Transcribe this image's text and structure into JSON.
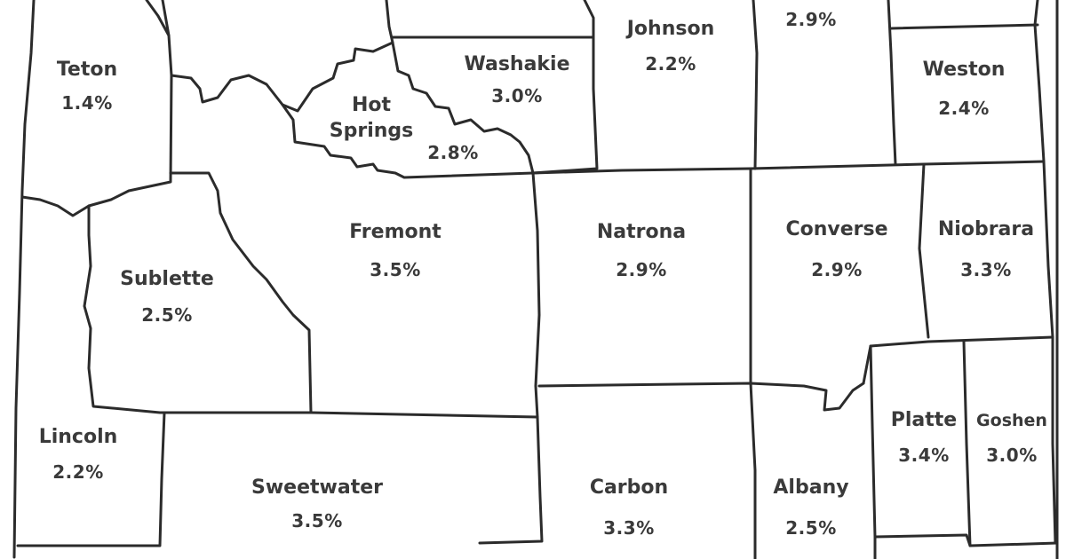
{
  "map": {
    "counties": [
      {
        "id": "teton",
        "name": "Teton",
        "value": "1.4%"
      },
      {
        "id": "washakie",
        "name": "Washakie",
        "value": "3.0%"
      },
      {
        "id": "johnson",
        "name": "Johnson",
        "value": "2.2%"
      },
      {
        "id": "campbell-partial",
        "name": "",
        "value": "2.9%"
      },
      {
        "id": "weston",
        "name": "Weston",
        "value": "2.4%"
      },
      {
        "id": "hot-springs",
        "name": "Hot Springs",
        "name_line1": "Hot",
        "name_line2": "Springs",
        "value": "2.8%"
      },
      {
        "id": "fremont",
        "name": "Fremont",
        "value": "3.5%"
      },
      {
        "id": "natrona",
        "name": "Natrona",
        "value": "2.9%"
      },
      {
        "id": "converse",
        "name": "Converse",
        "value": "2.9%"
      },
      {
        "id": "niobrara",
        "name": "Niobrara",
        "value": "3.3%"
      },
      {
        "id": "sublette",
        "name": "Sublette",
        "value": "2.5%"
      },
      {
        "id": "lincoln",
        "name": "Lincoln",
        "value": "2.2%"
      },
      {
        "id": "platte",
        "name": "Platte",
        "value": "3.4%"
      },
      {
        "id": "goshen",
        "name": "Goshen",
        "value": "3.0%"
      },
      {
        "id": "sweetwater",
        "name": "Sweetwater",
        "value": "3.5%"
      },
      {
        "id": "carbon",
        "name": "Carbon",
        "value": "3.3%"
      },
      {
        "id": "albany",
        "name": "Albany",
        "value": "2.5%"
      }
    ]
  }
}
